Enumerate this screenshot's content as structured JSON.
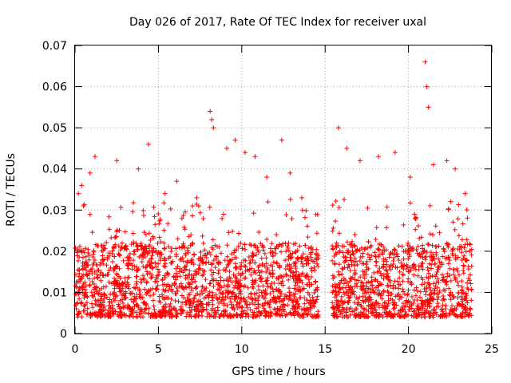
{
  "chart_data": {
    "type": "scatter",
    "title": "Day 026 of 2017, Rate Of TEC Index for receiver uxal",
    "xlabel": "GPS time / hours",
    "ylabel": "ROTI / TECUs",
    "xlim": [
      0,
      25
    ],
    "ylim": [
      0,
      0.07
    ],
    "xticks": [
      "0",
      "5",
      "10",
      "15",
      "20",
      "25"
    ],
    "yticks": [
      "0",
      "0.01",
      "0.02",
      "0.03",
      "0.04",
      "0.05",
      "0.06",
      "0.07"
    ],
    "grid": true,
    "marker": "plus",
    "color": "#ff0000",
    "series": [
      {
        "name": "ROTI",
        "segments": [
          {
            "x_range": [
              0,
              14.6
            ],
            "y_low": 0.004,
            "y_high": 0.033
          },
          {
            "x_range": [
              15.4,
              23.8
            ],
            "y_low": 0.004,
            "y_high": 0.033
          }
        ],
        "x": [
          0.2,
          0.4,
          0.9,
          1.2,
          2.5,
          3.8,
          4.4,
          5.4,
          6.1,
          7.3,
          8.1,
          8.2,
          8.3,
          9.1,
          9.6,
          10.2,
          10.8,
          11.5,
          12.4,
          12.9,
          13.6,
          15.8,
          16.3,
          17.1,
          18.2,
          19.2,
          20.1,
          21.0,
          21.1,
          21.2,
          21.5,
          22.3,
          22.8,
          23.4
        ],
        "y": [
          0.034,
          0.036,
          0.039,
          0.043,
          0.042,
          0.04,
          0.046,
          0.034,
          0.037,
          0.033,
          0.054,
          0.052,
          0.05,
          0.045,
          0.047,
          0.044,
          0.043,
          0.038,
          0.047,
          0.039,
          0.033,
          0.05,
          0.045,
          0.042,
          0.043,
          0.044,
          0.038,
          0.066,
          0.06,
          0.055,
          0.041,
          0.042,
          0.04,
          0.034
        ]
      }
    ]
  }
}
